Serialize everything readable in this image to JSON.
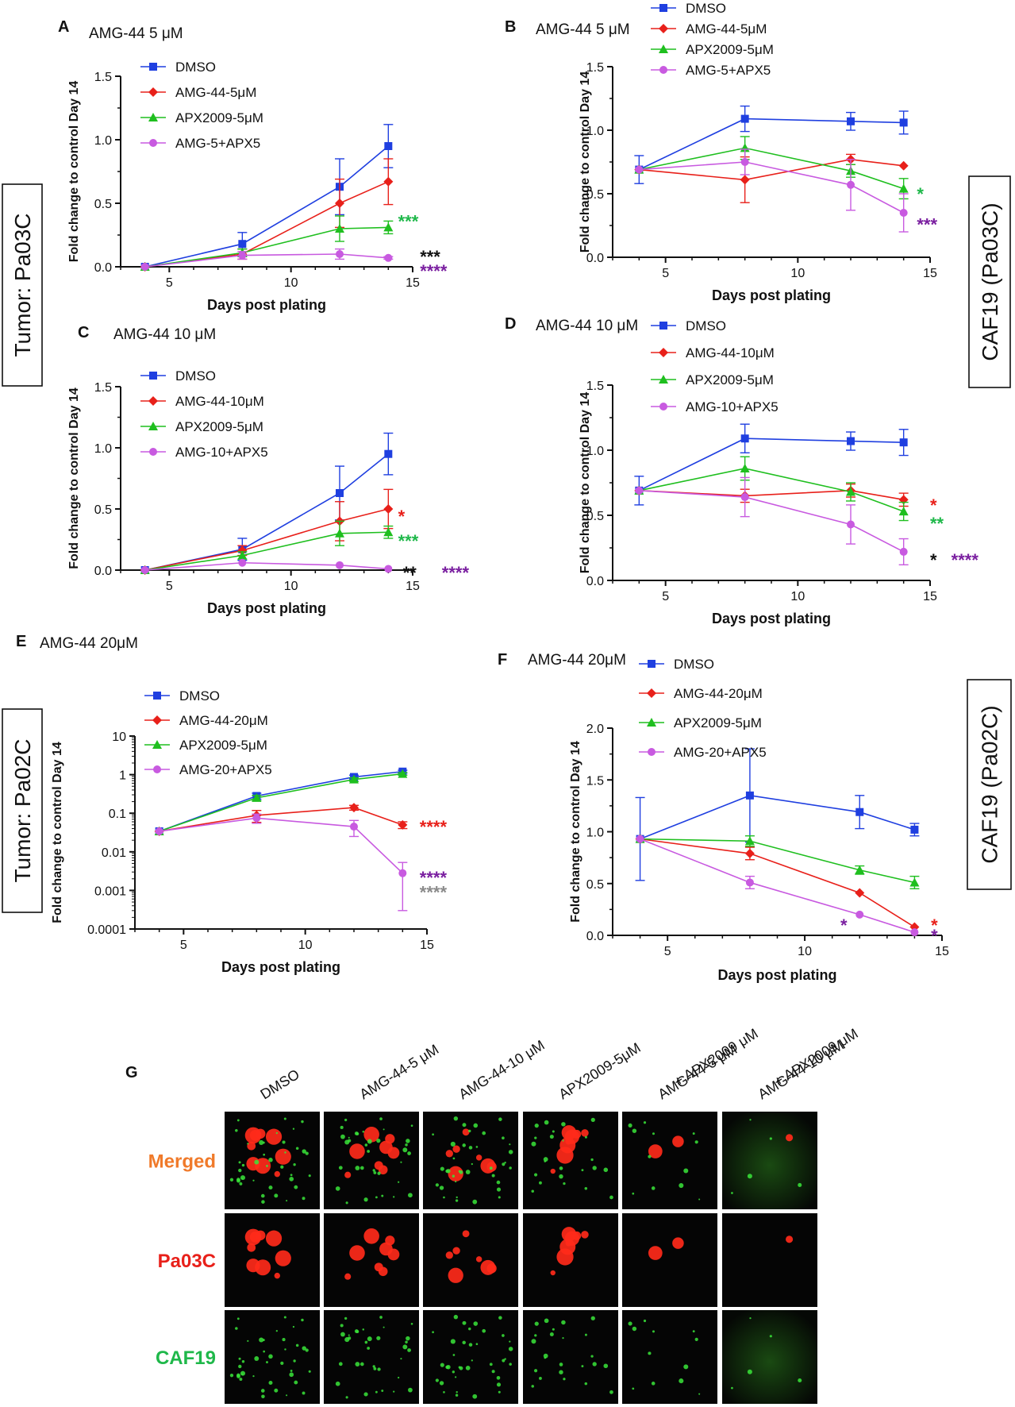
{
  "colors": {
    "DMSO": "#1f3fe0",
    "AMG": "#e8201a",
    "APX": "#1fbf1f",
    "COMBO": "#c85ae0",
    "black": "#111111",
    "purple": "#7a1fa0",
    "gray": "#8a8a8a",
    "orange": "#f07a2a",
    "red": "#e8201a",
    "green": "#1fb84a"
  },
  "side_labels": {
    "tumor_pa03c": "Tumor: Pa03C",
    "caf19_pa03c": "CAF19 (Pa03C)",
    "tumor_pa02c": "Tumor: Pa02C",
    "caf19_pa02c": "CAF19 (Pa02C)"
  },
  "chart_data": [
    {
      "panel": "A",
      "title": "AMG-44 5 μM",
      "type": "line",
      "xlabel": "Days post plating",
      "ylabel": "Fold change to control Day 14",
      "xlim": [
        3,
        15
      ],
      "ylim": [
        0,
        1.5
      ],
      "yscale": "linear",
      "xticks": [
        5,
        10,
        15
      ],
      "yticks": [
        "0.0",
        "0.5",
        "1.0",
        "1.5"
      ],
      "grid": false,
      "legend_position": "top-left",
      "series": [
        {
          "name": "DMSO",
          "color": "#1f3fe0",
          "marker": "square",
          "x": [
            4,
            8,
            12,
            14
          ],
          "y": [
            0.0,
            0.18,
            0.63,
            0.95
          ],
          "err": [
            0,
            0.09,
            0.22,
            0.17
          ]
        },
        {
          "name": "AMG-44-5μM",
          "color": "#e8201a",
          "marker": "diamond",
          "x": [
            4,
            8,
            12,
            14
          ],
          "y": [
            0.0,
            0.1,
            0.5,
            0.67
          ],
          "err": [
            0,
            0.04,
            0.19,
            0.18
          ]
        },
        {
          "name": "APX2009-5μM",
          "color": "#1fbf1f",
          "marker": "triangle",
          "x": [
            4,
            8,
            12,
            14
          ],
          "y": [
            0.0,
            0.11,
            0.3,
            0.31
          ],
          "err": [
            0,
            0.03,
            0.1,
            0.05
          ]
        },
        {
          "name": "AMG-5+APX5",
          "color": "#c85ae0",
          "marker": "circle",
          "x": [
            4,
            8,
            12,
            14
          ],
          "y": [
            0.0,
            0.09,
            0.1,
            0.07
          ],
          "err": [
            0,
            0.03,
            0.04,
            0.01
          ]
        }
      ],
      "annotations": [
        {
          "text": "***",
          "color": "#1fb84a",
          "x": 14.4,
          "y": 0.36
        },
        {
          "text": "***",
          "color": "#111111",
          "x": 15.3,
          "y": 0.08
        },
        {
          "text": "****",
          "color": "#7a1fa0",
          "x": 15.3,
          "y": -0.03
        }
      ]
    },
    {
      "panel": "B",
      "title": "AMG-44 5 μM",
      "type": "line",
      "xlabel": "Days post plating",
      "ylabel": "Fold change to control Day 14",
      "xlim": [
        3,
        15
      ],
      "ylim": [
        0,
        1.5
      ],
      "yscale": "linear",
      "xticks": [
        5,
        10,
        15
      ],
      "yticks": [
        "0.0",
        "0.5",
        "1.0",
        "1.5"
      ],
      "grid": false,
      "legend_position": "top",
      "series": [
        {
          "name": "DMSO",
          "color": "#1f3fe0",
          "marker": "square",
          "x": [
            4,
            8,
            12,
            14
          ],
          "y": [
            0.69,
            1.09,
            1.07,
            1.06
          ],
          "err": [
            0.11,
            0.1,
            0.07,
            0.09
          ]
        },
        {
          "name": "AMG-44-5μM",
          "color": "#e8201a",
          "marker": "diamond",
          "x": [
            4,
            8,
            12,
            14
          ],
          "y": [
            0.69,
            0.61,
            0.77,
            0.72
          ],
          "err": [
            0,
            0.18,
            0.04,
            0
          ]
        },
        {
          "name": "APX2009-5μM",
          "color": "#1fbf1f",
          "marker": "triangle",
          "x": [
            4,
            8,
            12,
            14
          ],
          "y": [
            0.69,
            0.86,
            0.68,
            0.54
          ],
          "err": [
            0,
            0.09,
            0.05,
            0.08
          ]
        },
        {
          "name": "AMG-5+APX5",
          "color": "#c85ae0",
          "marker": "circle",
          "x": [
            4,
            8,
            12,
            14
          ],
          "y": [
            0.69,
            0.75,
            0.57,
            0.35
          ],
          "err": [
            0,
            0.1,
            0.2,
            0.15
          ]
        }
      ],
      "annotations": [
        {
          "text": "*",
          "color": "#1fb84a",
          "x": 14.5,
          "y": 0.5
        },
        {
          "text": "***",
          "color": "#7a1fa0",
          "x": 14.5,
          "y": 0.26
        }
      ]
    },
    {
      "panel": "C",
      "title": "AMG-44 10 μM",
      "type": "line",
      "xlabel": "Days post plating",
      "ylabel": "Fold change to control Day 14",
      "xlim": [
        3,
        15
      ],
      "ylim": [
        0,
        1.5
      ],
      "yscale": "linear",
      "xticks": [
        5,
        10,
        15
      ],
      "yticks": [
        "0.0",
        "0.5",
        "1.0",
        "1.5"
      ],
      "grid": false,
      "legend_position": "top-left",
      "series": [
        {
          "name": "DMSO",
          "color": "#1f3fe0",
          "marker": "square",
          "x": [
            4,
            8,
            12,
            14
          ],
          "y": [
            0.0,
            0.17,
            0.63,
            0.95
          ],
          "err": [
            0,
            0.09,
            0.22,
            0.17
          ]
        },
        {
          "name": "AMG-44-10μM",
          "color": "#e8201a",
          "marker": "diamond",
          "x": [
            4,
            8,
            12,
            14
          ],
          "y": [
            0.0,
            0.16,
            0.4,
            0.5
          ],
          "err": [
            0,
            0.04,
            0.16,
            0.16
          ]
        },
        {
          "name": "APX2009-5μM",
          "color": "#1fbf1f",
          "marker": "triangle",
          "x": [
            4,
            8,
            12,
            14
          ],
          "y": [
            0.0,
            0.12,
            0.3,
            0.31
          ],
          "err": [
            0,
            0.03,
            0.1,
            0.05
          ]
        },
        {
          "name": "AMG-10+APX5",
          "color": "#c85ae0",
          "marker": "circle",
          "x": [
            4,
            8,
            12,
            14
          ],
          "y": [
            0.0,
            0.06,
            0.04,
            0.01
          ],
          "err": [
            0,
            0,
            0,
            0
          ]
        }
      ],
      "annotations": [
        {
          "text": "*",
          "color": "#e8201a",
          "x": 14.4,
          "y": 0.44
        },
        {
          "text": "***",
          "color": "#1fb84a",
          "x": 14.4,
          "y": 0.24
        },
        {
          "text": "**",
          "color": "#111111",
          "x": 14.6,
          "y": -0.02
        },
        {
          "text": "****",
          "color": "#7a1fa0",
          "x": 16.2,
          "y": -0.02
        }
      ]
    },
    {
      "panel": "D",
      "title": "AMG-44 10 μM",
      "type": "line",
      "xlabel": "Days post plating",
      "ylabel": "Fold change to control Day 14",
      "xlim": [
        3,
        15
      ],
      "ylim": [
        0,
        1.5
      ],
      "yscale": "linear",
      "xticks": [
        5,
        10,
        15
      ],
      "yticks": [
        "0.0",
        "0.5",
        "1.0",
        "1.5"
      ],
      "grid": false,
      "legend_position": "top",
      "series": [
        {
          "name": "DMSO",
          "color": "#1f3fe0",
          "marker": "square",
          "x": [
            4,
            8,
            12,
            14
          ],
          "y": [
            0.69,
            1.09,
            1.07,
            1.06
          ],
          "err": [
            0.11,
            0.11,
            0.07,
            0.1
          ]
        },
        {
          "name": "AMG-44-10μM",
          "color": "#e8201a",
          "marker": "diamond",
          "x": [
            4,
            8,
            12,
            14
          ],
          "y": [
            0.69,
            0.65,
            0.69,
            0.62
          ],
          "err": [
            0,
            0.05,
            0.05,
            0.05
          ]
        },
        {
          "name": "APX2009-5μM",
          "color": "#1fbf1f",
          "marker": "triangle",
          "x": [
            4,
            8,
            12,
            14
          ],
          "y": [
            0.69,
            0.86,
            0.68,
            0.53
          ],
          "err": [
            0,
            0.09,
            0.07,
            0.07
          ]
        },
        {
          "name": "AMG-10+APX5",
          "color": "#c85ae0",
          "marker": "circle",
          "x": [
            4,
            8,
            12,
            14
          ],
          "y": [
            0.69,
            0.64,
            0.43,
            0.22
          ],
          "err": [
            0,
            0.15,
            0.15,
            0.1
          ]
        }
      ],
      "annotations": [
        {
          "text": "*",
          "color": "#e8201a",
          "x": 15.0,
          "y": 0.58
        },
        {
          "text": "**",
          "color": "#1fb84a",
          "x": 15.0,
          "y": 0.44
        },
        {
          "text": "*",
          "color": "#111111",
          "x": 15.0,
          "y": 0.16
        },
        {
          "text": "****",
          "color": "#7a1fa0",
          "x": 15.8,
          "y": 0.16
        }
      ]
    },
    {
      "panel": "E",
      "title": "AMG-44 20μM",
      "type": "line",
      "xlabel": "Days post plating",
      "ylabel": "Fold change to control Day 14",
      "xlim": [
        3,
        15
      ],
      "ylim": [
        0.0001,
        10
      ],
      "yscale": "log",
      "xticks": [
        5,
        10,
        15
      ],
      "yticks": [
        "0.0001",
        "0.001",
        "0.01",
        "0.1",
        "1",
        "10"
      ],
      "grid": false,
      "legend_position": "top-left",
      "series": [
        {
          "name": "DMSO",
          "color": "#1f3fe0",
          "marker": "square",
          "x": [
            4,
            8,
            12,
            14
          ],
          "y": [
            0.034,
            0.28,
            0.87,
            1.2
          ],
          "err": [
            0,
            0.05,
            0.1,
            0.1
          ]
        },
        {
          "name": "AMG-44-20μM",
          "color": "#e8201a",
          "marker": "diamond",
          "x": [
            4,
            8,
            12,
            14
          ],
          "y": [
            0.034,
            0.088,
            0.14,
            0.05
          ],
          "err": [
            0,
            0.03,
            0.02,
            0.01
          ]
        },
        {
          "name": "APX2009-5μM",
          "color": "#1fbf1f",
          "marker": "triangle",
          "x": [
            4,
            8,
            12,
            14
          ],
          "y": [
            0.034,
            0.25,
            0.75,
            1.05
          ],
          "err": [
            0,
            0.04,
            0.08,
            0.08
          ]
        },
        {
          "name": "AMG-20+APX5",
          "color": "#c85ae0",
          "marker": "circle",
          "x": [
            4,
            8,
            12,
            14
          ],
          "y": [
            0.034,
            0.075,
            0.045,
            0.0028
          ],
          "err": [
            0,
            0.02,
            0.02,
            0.0025
          ]
        }
      ],
      "annotations": [
        {
          "text": "****",
          "color": "#e8201a",
          "x": 14.7,
          "y": 0.045
        },
        {
          "text": "****",
          "color": "#7a1fa0",
          "x": 14.7,
          "y": 0.0022
        },
        {
          "text": "****",
          "color": "#8a8a8a",
          "x": 14.7,
          "y": 0.0009
        }
      ]
    },
    {
      "panel": "F",
      "title": "AMG-44 20μM",
      "type": "line",
      "xlabel": "Days post plating",
      "ylabel": "Fold change to control Day 14",
      "xlim": [
        3,
        15
      ],
      "ylim": [
        0,
        2.0
      ],
      "yscale": "linear",
      "xticks": [
        5,
        10,
        15
      ],
      "yticks": [
        "0.0",
        "0.5",
        "1.0",
        "1.5",
        "2.0"
      ],
      "grid": false,
      "legend_position": "top",
      "series": [
        {
          "name": "DMSO",
          "color": "#1f3fe0",
          "marker": "square",
          "x": [
            4,
            8,
            12,
            14
          ],
          "y": [
            0.93,
            1.35,
            1.19,
            1.02
          ],
          "err": [
            0.4,
            0.45,
            0.16,
            0.06
          ]
        },
        {
          "name": "AMG-44-20μM",
          "color": "#e8201a",
          "marker": "diamond",
          "x": [
            4,
            8,
            12,
            14
          ],
          "y": [
            0.93,
            0.79,
            0.41,
            0.08
          ],
          "err": [
            0,
            0.06,
            0,
            0
          ]
        },
        {
          "name": "APX2009-5μM",
          "color": "#1fbf1f",
          "marker": "triangle",
          "x": [
            4,
            8,
            12,
            14
          ],
          "y": [
            0.93,
            0.91,
            0.63,
            0.51
          ],
          "err": [
            0,
            0.05,
            0.04,
            0.06
          ]
        },
        {
          "name": "AMG-20+APX5",
          "color": "#c85ae0",
          "marker": "circle",
          "x": [
            4,
            8,
            12,
            14
          ],
          "y": [
            0.93,
            0.51,
            0.2,
            0.03
          ],
          "err": [
            0,
            0.06,
            0,
            0
          ]
        }
      ],
      "annotations": [
        {
          "text": "*",
          "color": "#e8201a",
          "x": 14.6,
          "y": 0.1
        },
        {
          "text": "*",
          "color": "#7a1fa0",
          "x": 14.6,
          "y": 0.0
        },
        {
          "text": "*",
          "color": "#7a1fa0",
          "x": 11.3,
          "y": 0.1
        }
      ]
    }
  ],
  "panel_g": {
    "letter": "G",
    "column_headers": [
      "DMSO",
      "AMG-44-5 μM",
      "AMG-44-10 μM",
      "APX2009-5μM",
      "AMG-44-5 μM\n+ APX2009 μM",
      "AMG-44-10 μM\n+ APX2009 μM"
    ],
    "row_labels": [
      {
        "text": "Merged",
        "color": "#f07a2a"
      },
      {
        "text": "Pa03C",
        "color": "#e8201a"
      },
      {
        "text": "CAF19",
        "color": "#1fb84a"
      }
    ]
  }
}
